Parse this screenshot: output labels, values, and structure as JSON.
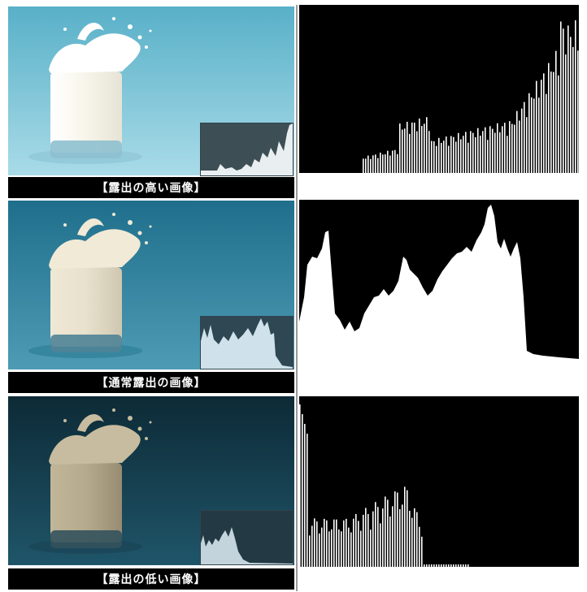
{
  "rows": [
    {
      "caption": "【露出の高い画像】",
      "exposure": "high",
      "colors": {
        "bg_top": "#58b0c8",
        "bg_bottom": "#a9dbe8",
        "milk": "#f7f5ea",
        "glass_base": "#7fb3c4",
        "inset_bg": "#3d4f55",
        "inset_fill": "#e9eef0"
      }
    },
    {
      "caption": "【通常露出の画像】",
      "exposure": "normal",
      "colors": {
        "bg_top": "#1f6f8c",
        "bg_bottom": "#4e9bb4",
        "milk": "#e8e1cd",
        "glass_base": "#416f80",
        "inset_bg": "#2e4752",
        "inset_fill": "#cfe1ea"
      }
    },
    {
      "caption": "【露出の低い画像】",
      "exposure": "low",
      "colors": {
        "bg_top": "#0d2a36",
        "bg_bottom": "#1f5569",
        "milk": "#b6aa8e",
        "glass_base": "#22414c",
        "inset_bg": "#233a44",
        "inset_fill": "#c4d4dc"
      }
    }
  ],
  "histogram_colors": {
    "background": "#000000",
    "fill": "#ffffff",
    "divider": "#9a9a9a"
  }
}
